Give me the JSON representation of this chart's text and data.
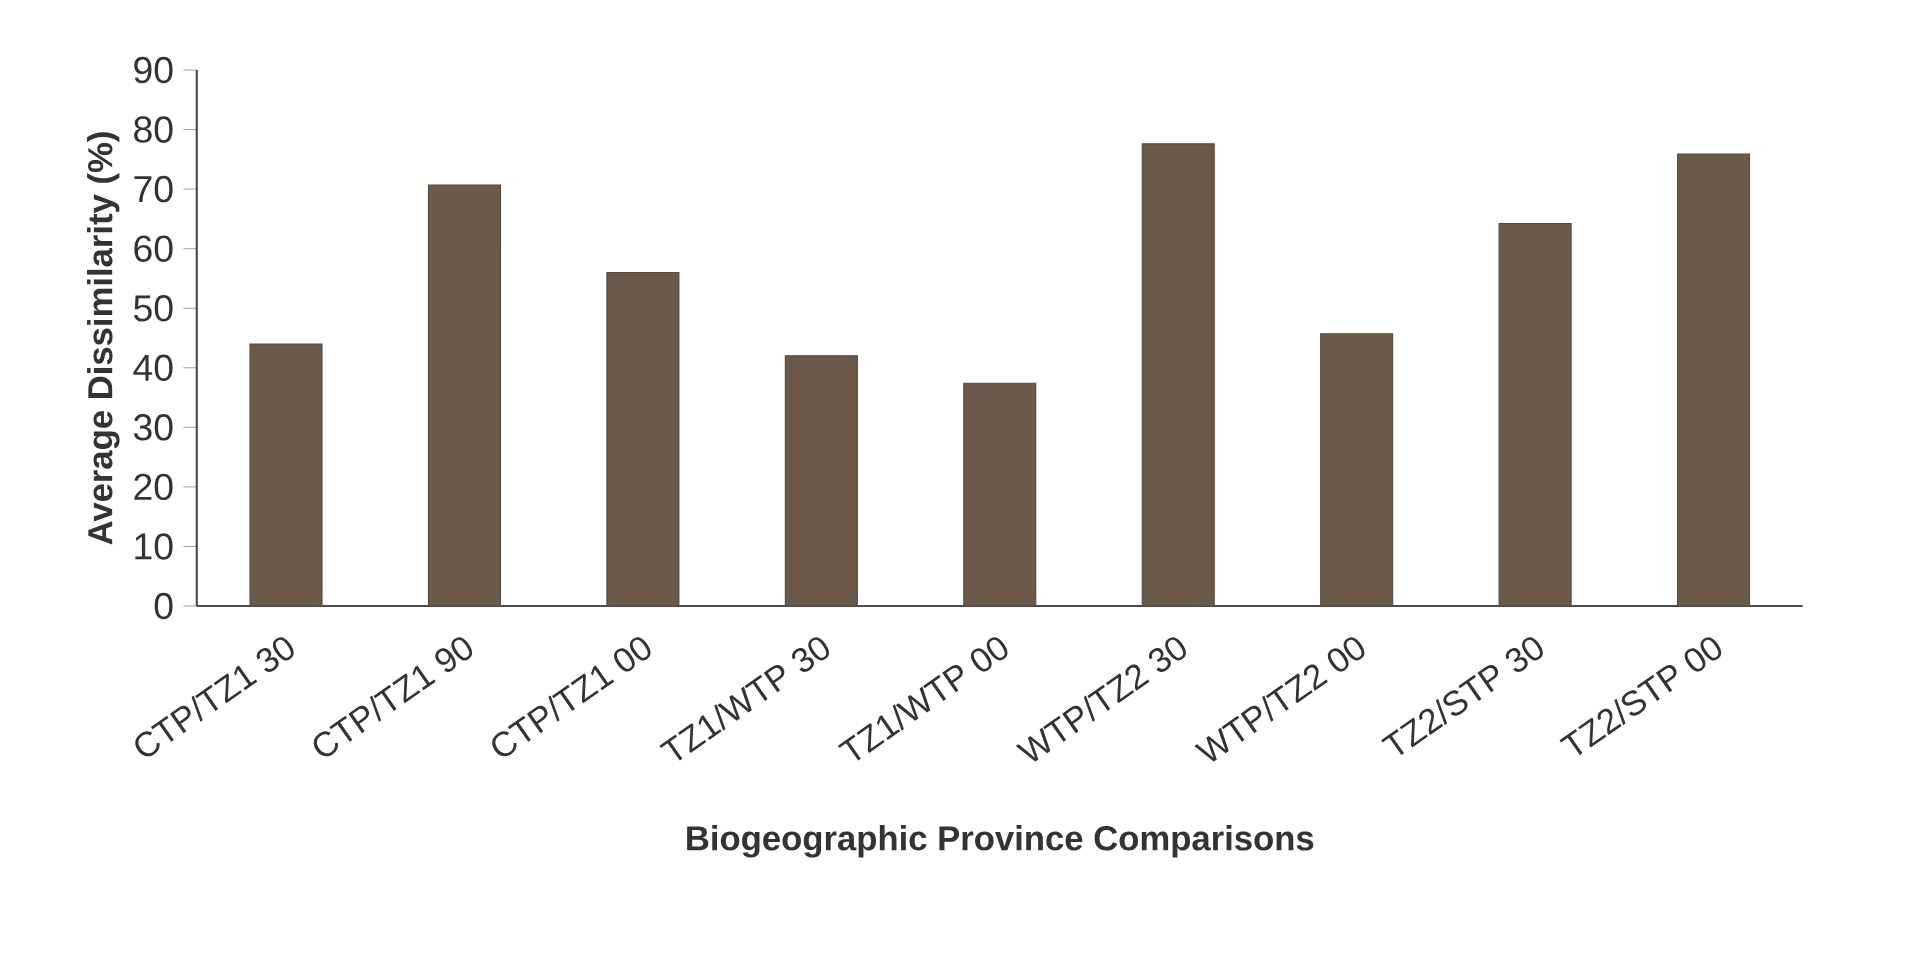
{
  "chart_data": {
    "type": "bar",
    "xlabel": "Biogeographic Province Comparisons",
    "ylabel": "Average Dissimilarity (%)",
    "categories": [
      "CTP/TZ1 30",
      "CTP/TZ1 90",
      "CTP/TZ1 00",
      "TZ1/WTP 30",
      "TZ1/WTP 00",
      "WTP/TZ2 30",
      "WTP/TZ2 00",
      "TZ2/STP 30",
      "TZ2/STP 00"
    ],
    "values": [
      44,
      70.7,
      56,
      42,
      37.4,
      77.6,
      45.7,
      64.2,
      75.9
    ],
    "color": "#6b5a4a",
    "ylim": [
      0,
      90
    ],
    "yticks": [
      0,
      10,
      20,
      30,
      40,
      50,
      60,
      70,
      80,
      90
    ]
  }
}
